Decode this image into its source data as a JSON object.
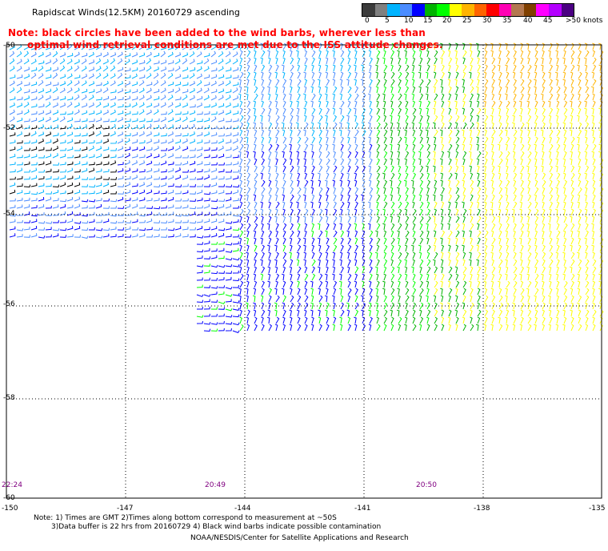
{
  "header": {
    "title": "Rapidscat Winds(12.5KM) 20160729 ascending"
  },
  "note": {
    "line1": "Note: black circles have been added to the wind barbs, wherever less than",
    "line2": "optimal wind retrieval conditions are met due to the ISS attitude changes."
  },
  "legend": {
    "labels": [
      "0",
      "5",
      "10",
      "15",
      "20",
      "25",
      "30",
      "35",
      "40",
      "45",
      ">50 knots"
    ],
    "colors": [
      "#3c3c3c",
      "#808080",
      "#00b4ff",
      "#4b8cff",
      "#0000ff",
      "#00b400",
      "#00ff00",
      "#ffff00",
      "#ffb400",
      "#ff6400",
      "#ff0000",
      "#ff00b4",
      "#b47850",
      "#804000",
      "#ff00ff",
      "#b400ff",
      "#4b0082"
    ]
  },
  "map": {
    "lon_ticks": [
      "-150",
      "-147",
      "-144",
      "-141",
      "-138",
      "-135"
    ],
    "lat_ticks": [
      "-52",
      "-54",
      "-56",
      "-58",
      "-60"
    ],
    "top_lat_label": "-50",
    "time_labels": [
      "22:24",
      "20:49",
      "20:50"
    ]
  },
  "footer": {
    "note1": "Note: 1) Times are GMT 2)Times along bottom correspond to measurement at ~50S",
    "note2": "3)Data buffer is 22 hrs from 20160729 4) Black wind barbs indicate possible contamination",
    "credit": "NOAA/NESDIS/Center for Satellite Applications and Research"
  }
}
